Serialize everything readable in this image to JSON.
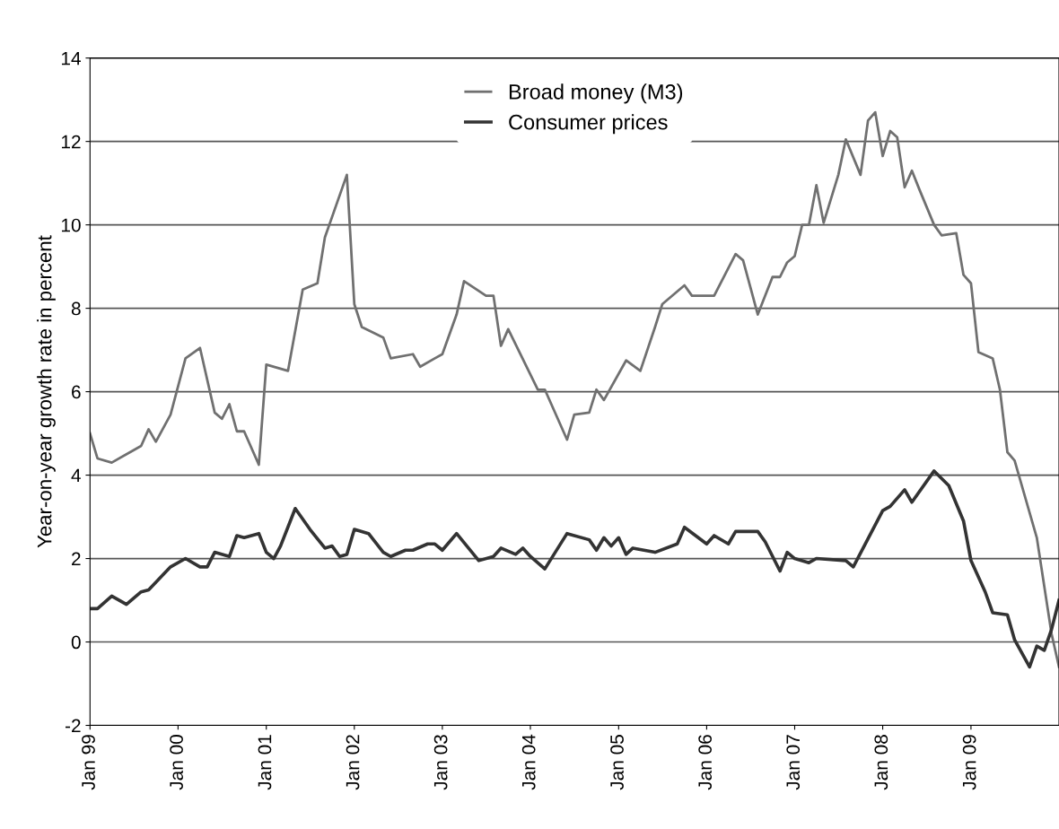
{
  "chart_data": {
    "type": "line",
    "ylabel": "Year-on-year growth rate in percent",
    "xlim": [
      "1999-01",
      "2010-01"
    ],
    "ylim": [
      -2,
      14
    ],
    "xticks": [
      {
        "value": "1999-01",
        "label": "Jan 99"
      },
      {
        "value": "2000-01",
        "label": "Jan 00"
      },
      {
        "value": "2001-01",
        "label": "Jan 01"
      },
      {
        "value": "2002-01",
        "label": "Jan 02"
      },
      {
        "value": "2003-01",
        "label": "Jan 03"
      },
      {
        "value": "2004-01",
        "label": "Jan 04"
      },
      {
        "value": "2005-01",
        "label": "Jan 05"
      },
      {
        "value": "2006-01",
        "label": "Jan 06"
      },
      {
        "value": "2007-01",
        "label": "Jan 07"
      },
      {
        "value": "2008-01",
        "label": "Jan 08"
      },
      {
        "value": "2009-01",
        "label": "Jan 09"
      }
    ],
    "yticks": [
      -2,
      0,
      2,
      4,
      6,
      8,
      10,
      12,
      14
    ],
    "grid": "y",
    "legend": "top",
    "line_style": "solid",
    "marker": "none",
    "series": [
      {
        "name": "Broad money (M3)",
        "color": "#707070",
        "x": [
          "1999-01",
          "1999-02",
          "1999-04",
          "1999-07",
          "1999-08",
          "1999-09",
          "1999-10",
          "1999-12",
          "2000-02",
          "2000-04",
          "2000-06",
          "2000-07",
          "2000-08",
          "2000-09",
          "2000-10",
          "2000-12",
          "2001-01",
          "2001-04",
          "2001-06",
          "2001-08",
          "2001-09",
          "2001-12",
          "2002-01",
          "2002-02",
          "2002-05",
          "2002-06",
          "2002-09",
          "2002-10",
          "2002-12",
          "2003-01",
          "2003-03",
          "2003-04",
          "2003-07",
          "2003-08",
          "2003-09",
          "2003-10",
          "2004-02",
          "2004-03",
          "2004-06",
          "2004-07",
          "2004-09",
          "2004-10",
          "2004-11",
          "2005-02",
          "2005-04",
          "2005-06",
          "2005-07",
          "2005-10",
          "2005-11",
          "2006-01",
          "2006-02",
          "2006-05",
          "2006-06",
          "2006-08",
          "2006-10",
          "2006-11",
          "2006-12",
          "2007-01",
          "2007-02",
          "2007-03",
          "2007-04",
          "2007-05",
          "2007-07",
          "2007-08",
          "2007-10",
          "2007-11",
          "2007-12",
          "2008-01",
          "2008-02",
          "2008-03",
          "2008-04",
          "2008-05",
          "2008-06",
          "2008-08",
          "2008-09",
          "2008-11",
          "2008-12",
          "2009-01",
          "2009-02",
          "2009-04",
          "2009-05",
          "2009-06",
          "2009-07",
          "2009-10",
          "2009-12",
          "2010-01"
        ],
        "values": [
          5.0,
          4.4,
          4.3,
          4.6,
          4.7,
          5.1,
          4.8,
          5.45,
          6.8,
          7.05,
          5.5,
          5.35,
          5.7,
          5.05,
          5.05,
          4.25,
          6.65,
          6.5,
          8.45,
          8.6,
          9.7,
          11.2,
          8.1,
          7.55,
          7.3,
          6.8,
          6.9,
          6.6,
          6.8,
          6.9,
          7.85,
          8.65,
          8.3,
          8.3,
          7.1,
          7.5,
          6.05,
          6.05,
          4.85,
          5.45,
          5.5,
          6.05,
          5.8,
          6.75,
          6.5,
          7.55,
          8.1,
          8.55,
          8.3,
          8.3,
          8.3,
          9.3,
          9.15,
          7.85,
          8.75,
          8.75,
          9.1,
          9.25,
          10.0,
          10.0,
          10.95,
          10.05,
          11.2,
          12.05,
          11.2,
          12.5,
          12.7,
          11.65,
          12.25,
          12.1,
          10.9,
          11.3,
          10.85,
          10.0,
          9.75,
          9.8,
          8.8,
          8.6,
          6.95,
          6.8,
          6.05,
          4.55,
          4.35,
          2.5,
          0.2,
          -0.6
        ]
      },
      {
        "name": "Consumer prices",
        "color": "#333333",
        "x": [
          "1999-01",
          "1999-02",
          "1999-04",
          "1999-06",
          "1999-08",
          "1999-09",
          "1999-12",
          "2000-02",
          "2000-04",
          "2000-05",
          "2000-06",
          "2000-08",
          "2000-09",
          "2000-10",
          "2000-12",
          "2001-01",
          "2001-02",
          "2001-03",
          "2001-05",
          "2001-07",
          "2001-09",
          "2001-10",
          "2001-11",
          "2001-12",
          "2002-01",
          "2002-03",
          "2002-05",
          "2002-06",
          "2002-08",
          "2002-09",
          "2002-11",
          "2002-12",
          "2003-01",
          "2003-03",
          "2003-06",
          "2003-08",
          "2003-09",
          "2003-11",
          "2003-12",
          "2004-01",
          "2004-03",
          "2004-06",
          "2004-09",
          "2004-10",
          "2004-11",
          "2004-12",
          "2005-01",
          "2005-02",
          "2005-03",
          "2005-06",
          "2005-09",
          "2005-10",
          "2006-01",
          "2006-02",
          "2006-04",
          "2006-05",
          "2006-08",
          "2006-09",
          "2006-11",
          "2006-12",
          "2007-01",
          "2007-03",
          "2007-04",
          "2007-08",
          "2007-09",
          "2008-01",
          "2008-02",
          "2008-04",
          "2008-05",
          "2008-08",
          "2008-10",
          "2008-12",
          "2009-01",
          "2009-03",
          "2009-04",
          "2009-06",
          "2009-07",
          "2009-09",
          "2009-10",
          "2009-11",
          "2009-12",
          "2010-01"
        ],
        "values": [
          0.8,
          0.8,
          1.1,
          0.9,
          1.2,
          1.25,
          1.8,
          2.0,
          1.8,
          1.8,
          2.15,
          2.05,
          2.55,
          2.5,
          2.6,
          2.15,
          2.0,
          2.3,
          3.2,
          2.7,
          2.25,
          2.3,
          2.05,
          2.1,
          2.7,
          2.6,
          2.15,
          2.05,
          2.2,
          2.2,
          2.35,
          2.35,
          2.2,
          2.6,
          1.95,
          2.05,
          2.25,
          2.1,
          2.25,
          2.05,
          1.75,
          2.6,
          2.45,
          2.2,
          2.5,
          2.3,
          2.5,
          2.1,
          2.25,
          2.15,
          2.35,
          2.75,
          2.35,
          2.55,
          2.35,
          2.65,
          2.65,
          2.4,
          1.7,
          2.15,
          2.0,
          1.9,
          2.0,
          1.95,
          1.8,
          3.15,
          3.25,
          3.65,
          3.35,
          4.1,
          3.75,
          2.9,
          1.95,
          1.2,
          0.7,
          0.65,
          0.05,
          -0.6,
          -0.1,
          -0.2,
          0.3,
          1.0
        ]
      }
    ]
  }
}
